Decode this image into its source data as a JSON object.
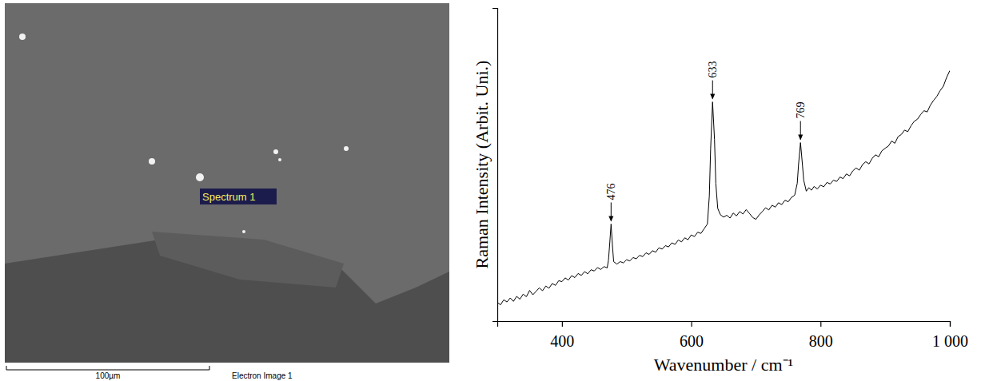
{
  "sem_image": {
    "label": "Spectrum 1",
    "scale_bar": "100µm",
    "caption": "Electron Image 1"
  },
  "chart_data": {
    "type": "line",
    "y_label": "Raman Intensity (Arbit. Uni.)",
    "x_label": "Wavenumber / cm⁻¹",
    "color": "#000000",
    "tick_labels": "x",
    "xlim": [
      300,
      1000
    ],
    "xticks": [
      400,
      600,
      800,
      {
        "value": 1000,
        "label": "1 000"
      }
    ],
    "ylim": [
      0,
      100
    ],
    "peaks": [
      476,
      633,
      769
    ],
    "x": [
      300,
      305,
      310,
      315,
      320,
      325,
      330,
      335,
      340,
      345,
      350,
      355,
      360,
      365,
      370,
      375,
      380,
      385,
      390,
      395,
      400,
      405,
      410,
      415,
      420,
      425,
      430,
      435,
      440,
      445,
      450,
      455,
      460,
      465,
      470,
      472,
      474,
      476,
      478,
      480,
      485,
      490,
      495,
      500,
      505,
      510,
      515,
      520,
      525,
      530,
      535,
      540,
      545,
      550,
      555,
      560,
      565,
      570,
      575,
      580,
      585,
      590,
      595,
      600,
      605,
      610,
      615,
      620,
      625,
      628,
      630,
      633,
      636,
      638,
      641,
      645,
      650,
      655,
      660,
      665,
      670,
      675,
      680,
      685,
      690,
      695,
      700,
      705,
      710,
      715,
      720,
      725,
      730,
      735,
      740,
      745,
      750,
      755,
      760,
      764,
      766,
      769,
      772,
      774,
      778,
      782,
      786,
      790,
      795,
      800,
      805,
      810,
      815,
      820,
      825,
      830,
      835,
      840,
      845,
      850,
      855,
      860,
      865,
      870,
      875,
      880,
      885,
      890,
      895,
      900,
      905,
      910,
      915,
      920,
      925,
      930,
      935,
      940,
      945,
      950,
      955,
      960,
      965,
      970,
      975,
      980,
      985,
      990,
      995,
      1000
    ],
    "values": [
      6.0,
      5.2,
      6.8,
      6.1,
      7.4,
      6.3,
      7.9,
      7.0,
      8.6,
      7.8,
      9.8,
      8.4,
      9.5,
      10.6,
      9.7,
      11.2,
      10.5,
      12.0,
      11.4,
      12.9,
      12.6,
      13.8,
      13.1,
      14.5,
      13.9,
      15.2,
      14.6,
      15.8,
      15.1,
      16.4,
      16.0,
      17.1,
      16.5,
      17.4,
      17.0,
      19.5,
      25.0,
      31.0,
      24.5,
      19.0,
      18.2,
      19.0,
      18.6,
      19.6,
      19.2,
      20.3,
      19.9,
      21.0,
      20.6,
      21.8,
      21.3,
      22.5,
      22.0,
      23.4,
      23.0,
      24.1,
      23.7,
      25.0,
      24.5,
      25.9,
      25.3,
      26.6,
      26.0,
      27.5,
      27.0,
      28.4,
      28.0,
      29.5,
      31.0,
      40,
      55,
      70,
      58,
      44,
      36,
      34.0,
      33.2,
      33.8,
      32.9,
      34.5,
      33.6,
      35.0,
      34.2,
      35.6,
      34.4,
      33.1,
      32.5,
      33.9,
      35.0,
      36.2,
      35.5,
      37.0,
      36.4,
      37.8,
      37.2,
      38.6,
      38.1,
      39.5,
      40.2,
      44,
      50,
      57,
      50,
      45,
      41.5,
      42.6,
      41.8,
      43.0,
      42.2,
      43.4,
      42.9,
      44.3,
      43.8,
      45.0,
      44.6,
      46.0,
      45.5,
      47.0,
      46.4,
      48.0,
      48.9,
      48.2,
      50.0,
      50.9,
      50.2,
      52.0,
      53.1,
      52.5,
      54.4,
      55.2,
      55.9,
      57.5,
      56.8,
      58.9,
      59.6,
      61.0,
      60.5,
      62.4,
      63.8,
      64.5,
      66.0,
      67.2,
      66.8,
      69.0,
      70.5,
      71.8,
      73.6,
      75.0,
      77.8,
      80.0
    ]
  }
}
